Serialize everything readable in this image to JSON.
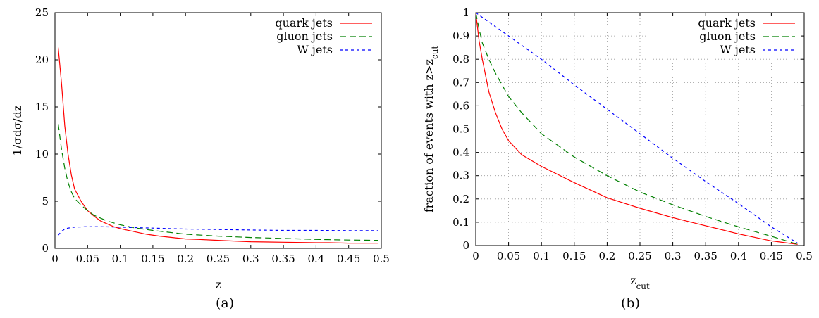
{
  "chart_data": [
    {
      "type": "line",
      "caption": "(a)",
      "xlabel": "z",
      "ylabel": "1/σdσ/dz",
      "xlim": [
        0,
        0.5
      ],
      "ylim": [
        0,
        25
      ],
      "xticks": [
        "0",
        "0.05",
        "0.1",
        "0.15",
        "0.2",
        "0.25",
        "0.3",
        "0.35",
        "0.4",
        "0.45",
        "0.5"
      ],
      "yticks": [
        "0",
        "5",
        "10",
        "15",
        "20",
        "25"
      ],
      "grid": false,
      "legend_position": "top-right",
      "series": [
        {
          "name": "quark jets",
          "color": "#ff0000",
          "dash": "solid",
          "x": [
            0.005,
            0.01,
            0.015,
            0.02,
            0.025,
            0.03,
            0.04,
            0.05,
            0.06,
            0.07,
            0.08,
            0.09,
            0.1,
            0.12,
            0.14,
            0.16,
            0.18,
            0.2,
            0.22,
            0.25,
            0.28,
            0.3,
            0.35,
            0.4,
            0.42,
            0.45,
            0.48,
            0.495
          ],
          "y": [
            21.3,
            17.5,
            13.0,
            10.0,
            7.8,
            6.3,
            5.0,
            4.0,
            3.4,
            2.9,
            2.6,
            2.3,
            2.1,
            1.8,
            1.5,
            1.3,
            1.15,
            1.0,
            0.95,
            0.85,
            0.75,
            0.7,
            0.65,
            0.6,
            0.6,
            0.55,
            0.55,
            0.55
          ]
        },
        {
          "name": "gluon jets",
          "color": "#008000",
          "dash": "long",
          "x": [
            0.005,
            0.01,
            0.015,
            0.02,
            0.025,
            0.03,
            0.04,
            0.05,
            0.06,
            0.07,
            0.08,
            0.09,
            0.1,
            0.12,
            0.15,
            0.2,
            0.25,
            0.3,
            0.35,
            0.4,
            0.45,
            0.495
          ],
          "y": [
            13.2,
            10.5,
            8.5,
            7.0,
            6.0,
            5.3,
            4.6,
            4.0,
            3.5,
            3.2,
            2.9,
            2.7,
            2.5,
            2.2,
            1.9,
            1.5,
            1.3,
            1.15,
            1.05,
            0.95,
            0.88,
            0.85
          ]
        },
        {
          "name": "W jets",
          "color": "#0000ff",
          "dash": "short",
          "x": [
            0.005,
            0.01,
            0.015,
            0.02,
            0.03,
            0.05,
            0.07,
            0.1,
            0.15,
            0.2,
            0.25,
            0.3,
            0.35,
            0.4,
            0.45,
            0.495
          ],
          "y": [
            1.4,
            1.8,
            2.05,
            2.15,
            2.25,
            2.3,
            2.3,
            2.25,
            2.15,
            2.05,
            2.0,
            1.95,
            1.9,
            1.9,
            1.88,
            1.87
          ]
        }
      ]
    },
    {
      "type": "line",
      "caption": "(b)",
      "xlabel": "z_cut",
      "ylabel": "fraction of events with z>z_cut",
      "xlim": [
        0,
        0.5
      ],
      "ylim": [
        0,
        1
      ],
      "xticks": [
        "0",
        "0.05",
        "0.1",
        "0.15",
        "0.2",
        "0.25",
        "0.3",
        "0.35",
        "0.4",
        "0.45",
        "0.5"
      ],
      "yticks": [
        "0",
        "0.1",
        "0.2",
        "0.3",
        "0.4",
        "0.5",
        "0.6",
        "0.7",
        "0.8",
        "0.9",
        "1"
      ],
      "grid": true,
      "legend_position": "top-right",
      "series": [
        {
          "name": "quark jets",
          "color": "#ff0000",
          "dash": "solid",
          "x": [
            0,
            0.005,
            0.01,
            0.02,
            0.03,
            0.04,
            0.05,
            0.07,
            0.1,
            0.15,
            0.2,
            0.25,
            0.3,
            0.35,
            0.4,
            0.45,
            0.49
          ],
          "y": [
            1.0,
            0.88,
            0.8,
            0.66,
            0.57,
            0.5,
            0.45,
            0.39,
            0.34,
            0.27,
            0.205,
            0.16,
            0.12,
            0.085,
            0.05,
            0.02,
            0.005
          ]
        },
        {
          "name": "gluon jets",
          "color": "#008000",
          "dash": "long",
          "x": [
            0,
            0.005,
            0.01,
            0.02,
            0.03,
            0.05,
            0.07,
            0.1,
            0.15,
            0.2,
            0.25,
            0.3,
            0.35,
            0.4,
            0.45,
            0.49
          ],
          "y": [
            1.0,
            0.93,
            0.87,
            0.8,
            0.74,
            0.64,
            0.57,
            0.48,
            0.38,
            0.3,
            0.23,
            0.175,
            0.125,
            0.08,
            0.04,
            0.005
          ]
        },
        {
          "name": "W jets",
          "color": "#0000ff",
          "dash": "short",
          "x": [
            0,
            0.05,
            0.1,
            0.15,
            0.2,
            0.25,
            0.3,
            0.35,
            0.4,
            0.45,
            0.49
          ],
          "y": [
            1.0,
            0.9,
            0.8,
            0.69,
            0.585,
            0.48,
            0.375,
            0.275,
            0.18,
            0.08,
            0.01
          ]
        }
      ]
    }
  ]
}
